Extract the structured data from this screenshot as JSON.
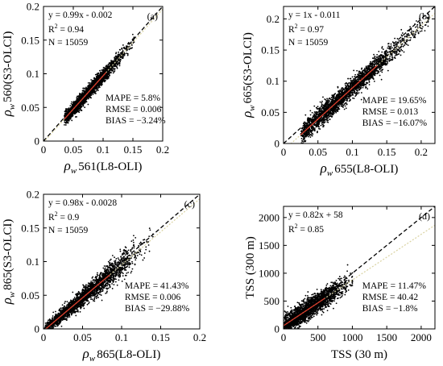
{
  "chart_data": [
    {
      "type": "scatter",
      "panel_label": "(a)",
      "xlabel": {
        "rho": "ρ",
        "sub": "w",
        "rest": "561(L8-OLI)"
      },
      "ylabel": {
        "rho": "ρ",
        "sub": "w",
        "rest": "560(S3-OLCI)"
      },
      "xlim": [
        0,
        0.2
      ],
      "ylim": [
        0,
        0.2
      ],
      "xticks": [
        "0",
        "0.05",
        "0.1",
        "0.15",
        "0.2"
      ],
      "yticks": [
        "0",
        "0.05",
        "0.1",
        "0.15",
        "0.2"
      ],
      "xtick_values": [
        0,
        0.05,
        0.1,
        0.15,
        0.2
      ],
      "ytick_values": [
        0,
        0.05,
        0.1,
        0.15,
        0.2
      ],
      "fit": {
        "slope": 0.99,
        "intercept": -0.002,
        "text": "y = 0.99x - 0.002"
      },
      "r2": {
        "base": "R",
        "sup": "2",
        "value": " = 0.94"
      },
      "n": "N = 15059",
      "stats": [
        "MAPE = 5.8%",
        "RMSE = 0.006",
        "BIAS = −3.24%"
      ],
      "points": {
        "count": 15059,
        "x_range": [
          0.035,
          0.152
        ],
        "spread": 0.005
      }
    },
    {
      "type": "scatter",
      "panel_label": "(b)",
      "xlabel": {
        "rho": "ρ",
        "sub": "w",
        "rest": "655(L8-OLI)"
      },
      "ylabel": {
        "rho": "ρ",
        "sub": "w",
        "rest": "665(S3-OLCI)"
      },
      "xlim": [
        0,
        0.22
      ],
      "ylim": [
        0,
        0.22
      ],
      "xticks": [
        "0",
        "0.05",
        "0.1",
        "0.15",
        "0.2"
      ],
      "yticks": [
        "0",
        "0.05",
        "0.1",
        "0.15",
        "0.2"
      ],
      "xtick_values": [
        0,
        0.05,
        0.1,
        0.15,
        0.2
      ],
      "ytick_values": [
        0,
        0.05,
        0.1,
        0.15,
        0.2
      ],
      "fit": {
        "slope": 1,
        "intercept": -0.011,
        "text": "y = 1x - 0.011"
      },
      "r2": {
        "base": "R",
        "sup": "2",
        "value": " = 0.97"
      },
      "n": "N = 15059",
      "stats": [
        "MAPE = 19.65%",
        "RMSE = 0.013",
        "BIAS = −16.07%"
      ],
      "points": {
        "count": 15059,
        "x_range": [
          0.025,
          0.21
        ],
        "spread": 0.008
      }
    },
    {
      "type": "scatter",
      "panel_label": "(c)",
      "xlabel": {
        "rho": "ρ",
        "sub": "w",
        "rest": "865(L8-OLI)"
      },
      "ylabel": {
        "rho": "ρ",
        "sub": "w",
        "rest": "865(S3-OLCI)"
      },
      "xlim": [
        0,
        0.2
      ],
      "ylim": [
        0,
        0.2
      ],
      "xticks": [
        "0",
        "0.05",
        "0.1",
        "0.15",
        "0.2"
      ],
      "yticks": [
        "0",
        "0.05",
        "0.1",
        "0.15",
        "0.2"
      ],
      "xtick_values": [
        0,
        0.05,
        0.1,
        0.15,
        0.2
      ],
      "ytick_values": [
        0,
        0.05,
        0.1,
        0.15,
        0.2
      ],
      "fit": {
        "slope": 0.98,
        "intercept": -0.0028,
        "text": "y = 0.98x - 0.0028"
      },
      "r2": {
        "base": "R",
        "sup": "2",
        "value": " = 0.9"
      },
      "n": "N = 15059",
      "stats": [
        "MAPE = 41.43%",
        "RMSE = 0.006",
        "BIAS = −29.88%"
      ],
      "points": {
        "count": 15059,
        "x_range": [
          0.002,
          0.14
        ],
        "spread": 0.006
      }
    },
    {
      "type": "scatter",
      "panel_label": "(d)",
      "xlabel": {
        "rho": "",
        "sub": "",
        "rest": "TSS (30 m)"
      },
      "ylabel": {
        "rho": "",
        "sub": "",
        "rest": "TSS (300 m)"
      },
      "xlim": [
        0,
        2200
      ],
      "ylim": [
        0,
        2200
      ],
      "xticks": [
        "0",
        "500",
        "1000",
        "1500",
        "2000"
      ],
      "yticks": [
        "0",
        "500",
        "1000",
        "1500",
        "2000"
      ],
      "xtick_values": [
        0,
        500,
        1000,
        1500,
        2000
      ],
      "ytick_values": [
        0,
        500,
        1000,
        1500,
        2000
      ],
      "fit": {
        "slope": 0.82,
        "intercept": 58,
        "text": "y = 0.82x + 58"
      },
      "r2": {
        "base": "R",
        "sup": "2",
        "value": " = 0.85"
      },
      "n": "",
      "stats": [
        "MAPE = 11.47%",
        "RMSE = 40.42",
        "BIAS = −1.8%"
      ],
      "points": {
        "count": 15059,
        "x_range": [
          0,
          1000
        ],
        "spread": 90
      }
    }
  ],
  "colors": {
    "points": "#000000",
    "one_to_one": "#000000",
    "fit_line": "#d9d2a0",
    "fit_line_dense": "#d83a2a"
  }
}
